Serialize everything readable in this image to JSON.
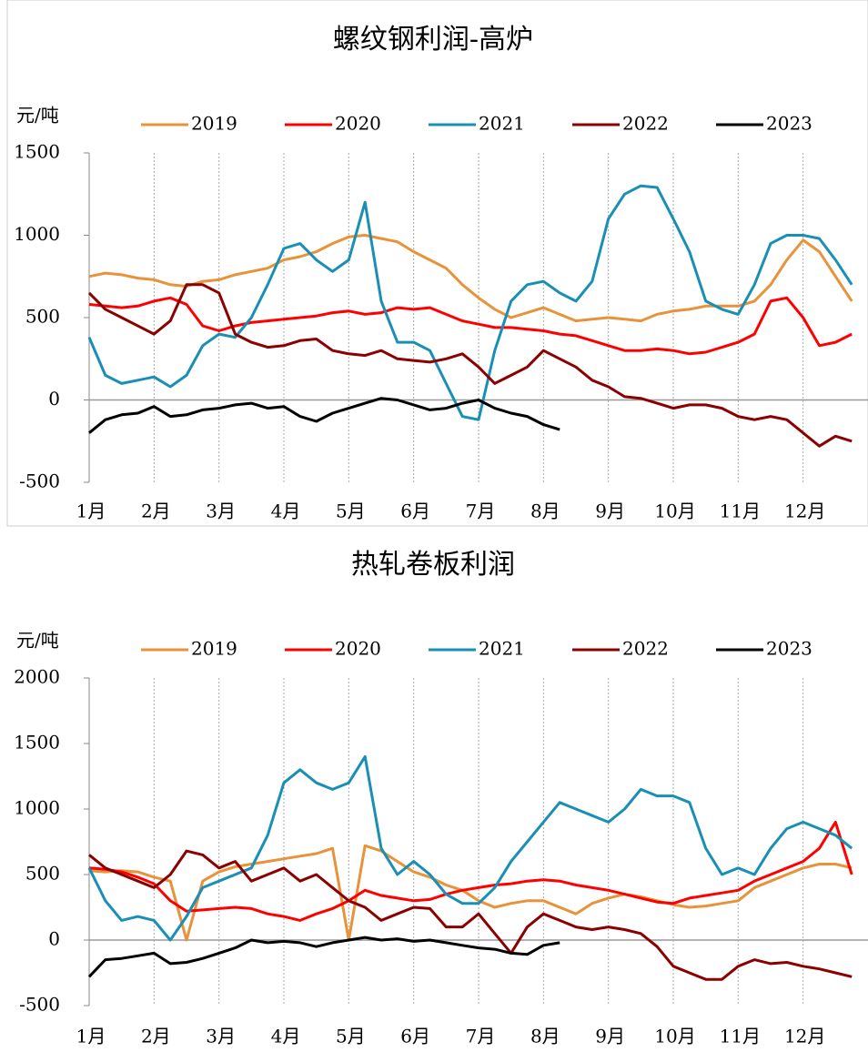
{
  "chart_data": [
    {
      "type": "line",
      "title": "螺纹钢利润-高炉",
      "y_label": "元/吨",
      "categories": [
        "1月",
        null,
        null,
        null,
        "2月",
        null,
        null,
        null,
        "3月",
        null,
        null,
        null,
        "4月",
        null,
        null,
        null,
        "5月",
        null,
        null,
        null,
        "6月",
        null,
        null,
        null,
        "7月",
        null,
        null,
        null,
        "8月",
        null,
        null,
        null,
        "9月",
        null,
        null,
        null,
        "10月",
        null,
        null,
        null,
        "11月",
        null,
        null,
        null,
        "12月",
        null,
        null,
        null
      ],
      "ylim": [
        -500,
        1500
      ],
      "yticks": [
        -500,
        0,
        500,
        1000,
        1500
      ],
      "grid": true,
      "series": [
        {
          "name": "2019",
          "color": "#e8923a",
          "values": [
            750,
            770,
            760,
            740,
            730,
            700,
            690,
            720,
            730,
            760,
            780,
            800,
            850,
            870,
            900,
            950,
            990,
            1000,
            980,
            960,
            900,
            850,
            800,
            700,
            620,
            550,
            500,
            530,
            560,
            520,
            480,
            490,
            500,
            490,
            480,
            520,
            540,
            550,
            570,
            570,
            570,
            600,
            700,
            850,
            970,
            900,
            750,
            600
          ]
        },
        {
          "name": "2020",
          "color": "#ff0000",
          "values": [
            580,
            570,
            560,
            570,
            600,
            620,
            580,
            450,
            420,
            450,
            470,
            480,
            490,
            500,
            510,
            530,
            540,
            520,
            530,
            560,
            550,
            560,
            520,
            480,
            460,
            440,
            440,
            430,
            420,
            400,
            390,
            360,
            330,
            300,
            300,
            310,
            300,
            280,
            290,
            320,
            350,
            400,
            600,
            620,
            500,
            330,
            350,
            400
          ]
        },
        {
          "name": "2021",
          "color": "#1a8fb5",
          "values": [
            380,
            150,
            100,
            120,
            140,
            80,
            150,
            330,
            400,
            380,
            500,
            700,
            920,
            950,
            850,
            780,
            850,
            1200,
            600,
            350,
            350,
            300,
            100,
            -100,
            -120,
            300,
            600,
            700,
            720,
            650,
            600,
            720,
            1100,
            1250,
            1300,
            1290,
            1100,
            900,
            600,
            550,
            520,
            700,
            950,
            1000,
            1000,
            980,
            850,
            700
          ]
        },
        {
          "name": "2022",
          "color": "#8b0000",
          "values": [
            650,
            550,
            500,
            450,
            400,
            480,
            700,
            700,
            650,
            400,
            350,
            320,
            330,
            360,
            370,
            300,
            280,
            270,
            300,
            250,
            240,
            230,
            250,
            280,
            200,
            100,
            150,
            200,
            300,
            250,
            200,
            120,
            80,
            20,
            10,
            -20,
            -50,
            -30,
            -30,
            -50,
            -100,
            -120,
            -100,
            -120,
            -200,
            -280,
            -220,
            -250
          ]
        },
        {
          "name": "2023",
          "color": "#000000",
          "values": [
            -200,
            -120,
            -90,
            -80,
            -40,
            -100,
            -90,
            -60,
            -50,
            -30,
            -20,
            -50,
            -40,
            -100,
            -130,
            -80,
            -50,
            -20,
            10,
            0,
            -30,
            -60,
            -50,
            -20,
            0,
            -50,
            -80,
            -100,
            -150,
            -180,
            null,
            null,
            null,
            null,
            null,
            null,
            null,
            null,
            null,
            null,
            null,
            null,
            null,
            null,
            null,
            null,
            null,
            null
          ]
        }
      ]
    },
    {
      "type": "line",
      "title": "热轧卷板利润",
      "y_label": "元/吨",
      "categories": [
        "1月",
        null,
        null,
        null,
        "2月",
        null,
        null,
        null,
        "3月",
        null,
        null,
        null,
        "4月",
        null,
        null,
        null,
        "5月",
        null,
        null,
        null,
        "6月",
        null,
        null,
        null,
        "7月",
        null,
        null,
        null,
        "8月",
        null,
        null,
        null,
        "9月",
        null,
        null,
        null,
        "10月",
        null,
        null,
        null,
        "11月",
        null,
        null,
        null,
        "12月",
        null,
        null,
        null
      ],
      "ylim": [
        -500,
        2000
      ],
      "yticks": [
        -500,
        0,
        500,
        1000,
        1500,
        2000
      ],
      "grid": true,
      "series": [
        {
          "name": "2019",
          "color": "#e8923a",
          "values": [
            530,
            520,
            530,
            520,
            480,
            450,
            0,
            450,
            520,
            560,
            580,
            600,
            620,
            640,
            660,
            700,
            0,
            720,
            680,
            600,
            520,
            480,
            420,
            380,
            300,
            250,
            280,
            300,
            300,
            250,
            200,
            280,
            320,
            350,
            330,
            300,
            270,
            250,
            260,
            280,
            300,
            400,
            450,
            500,
            550,
            580,
            580,
            550
          ]
        },
        {
          "name": "2020",
          "color": "#ff0000",
          "values": [
            550,
            540,
            520,
            480,
            430,
            300,
            220,
            230,
            240,
            250,
            240,
            200,
            180,
            150,
            200,
            240,
            300,
            380,
            340,
            320,
            300,
            310,
            350,
            380,
            400,
            420,
            430,
            450,
            460,
            450,
            420,
            400,
            380,
            350,
            320,
            290,
            280,
            320,
            340,
            360,
            380,
            450,
            500,
            550,
            600,
            700,
            900,
            500
          ]
        },
        {
          "name": "2021",
          "color": "#1a8fb5",
          "values": [
            550,
            300,
            150,
            180,
            150,
            0,
            180,
            400,
            450,
            500,
            550,
            800,
            1200,
            1300,
            1200,
            1150,
            1200,
            1400,
            700,
            500,
            600,
            500,
            350,
            280,
            280,
            400,
            600,
            750,
            900,
            1050,
            1000,
            950,
            900,
            1000,
            1150,
            1100,
            1100,
            1050,
            700,
            500,
            550,
            500,
            700,
            850,
            900,
            850,
            800,
            700
          ]
        },
        {
          "name": "2022",
          "color": "#8b0000",
          "values": [
            650,
            550,
            500,
            450,
            400,
            500,
            680,
            650,
            550,
            600,
            450,
            500,
            550,
            450,
            500,
            400,
            300,
            250,
            150,
            200,
            250,
            240,
            100,
            100,
            200,
            50,
            -100,
            100,
            200,
            150,
            100,
            80,
            100,
            80,
            50,
            -50,
            -200,
            -250,
            -300,
            -300,
            -200,
            -150,
            -180,
            -170,
            -200,
            -220,
            -250,
            -280
          ]
        },
        {
          "name": "2023",
          "color": "#000000",
          "values": [
            -280,
            -150,
            -140,
            -120,
            -100,
            -180,
            -170,
            -140,
            -100,
            -60,
            0,
            -20,
            -10,
            -20,
            -50,
            -20,
            0,
            20,
            0,
            10,
            -10,
            0,
            -20,
            -40,
            -60,
            -70,
            -100,
            -110,
            -40,
            -20,
            null,
            null,
            null,
            null,
            null,
            null,
            null,
            null,
            null,
            null,
            null,
            null,
            null,
            null,
            null,
            null,
            null,
            null
          ]
        }
      ]
    }
  ]
}
